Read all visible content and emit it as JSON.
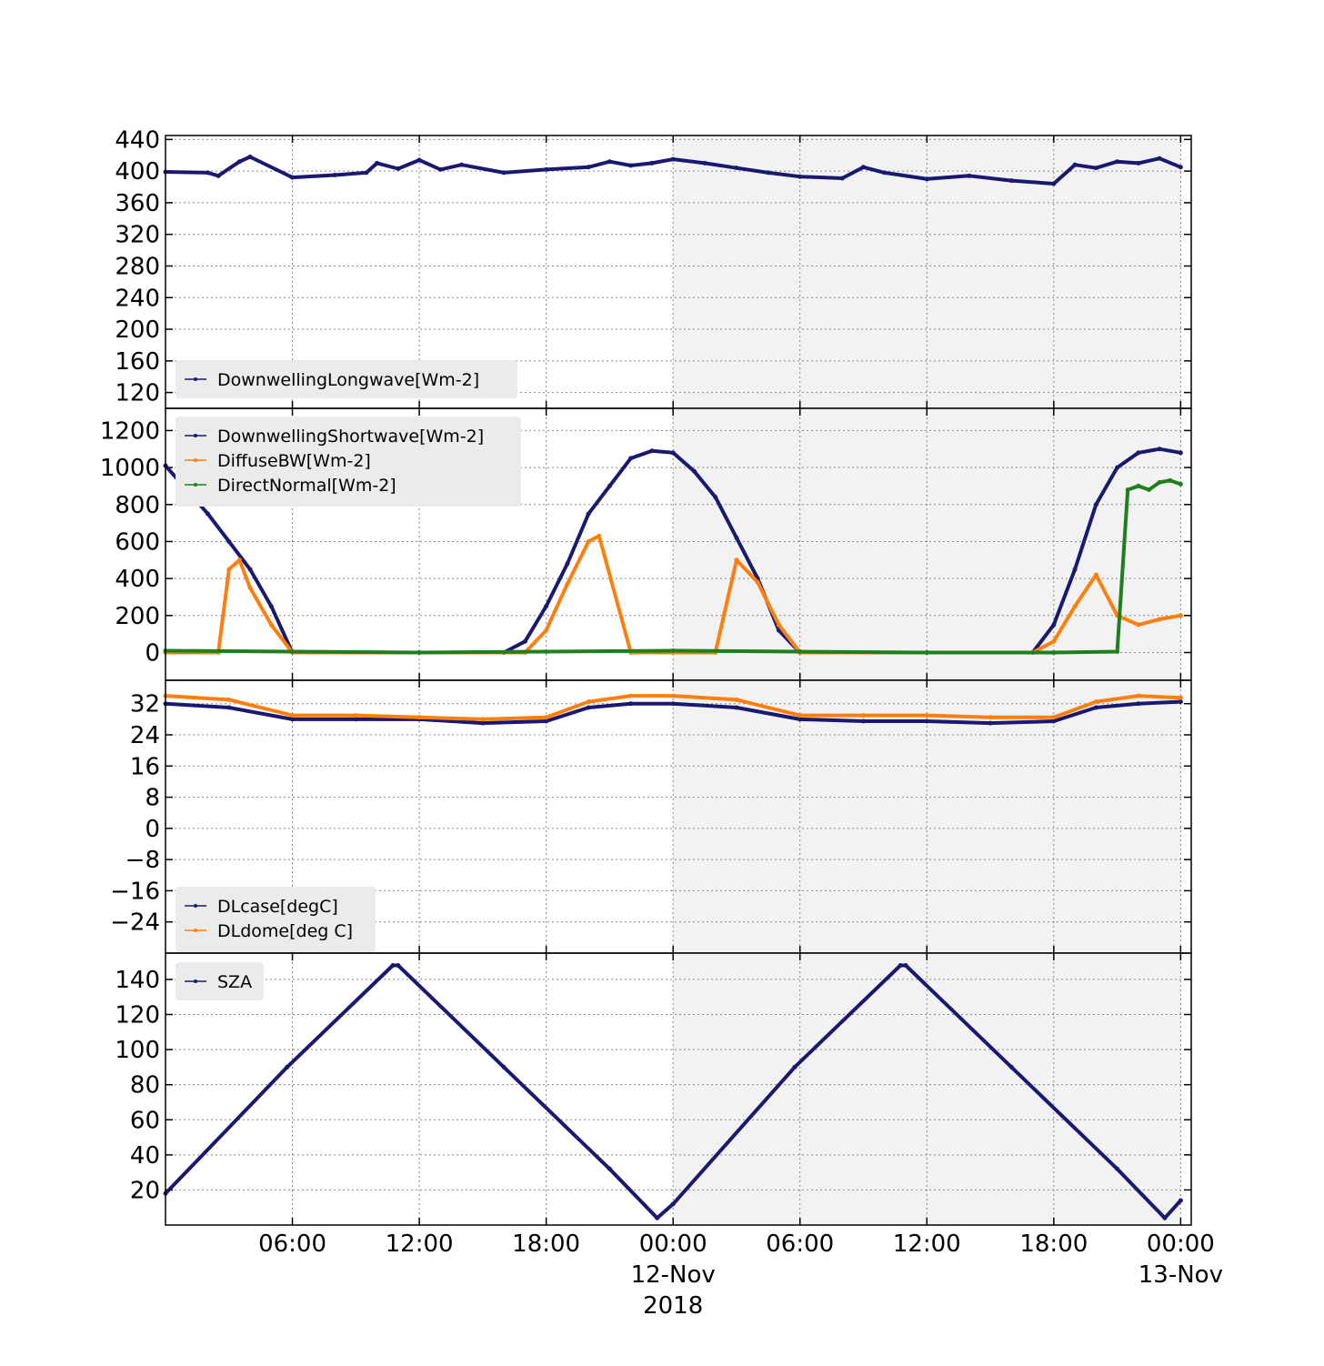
{
  "chart_data": [
    {
      "type": "line",
      "panel": "longwave",
      "title": "",
      "xlabel": "",
      "ylabel": "",
      "xlim": [
        "2018-11-11 00:00",
        "2018-11-13 00:30"
      ],
      "ylim": [
        100,
        445
      ],
      "yticks": [
        120,
        160,
        200,
        240,
        280,
        320,
        360,
        400,
        440
      ],
      "grid": true,
      "legend_position": "lower-left",
      "shaded_region": [
        "2018-11-12 00:00",
        "2018-11-13 00:00"
      ],
      "series": [
        {
          "name": "DownwellingLongwave[Wm-2]",
          "color": "#191970",
          "x": [
            "2018-11-11 00:00",
            "2018-11-11 02:00",
            "2018-11-11 02:30",
            "2018-11-11 03:30",
            "2018-11-11 04:00",
            "2018-11-11 06:00",
            "2018-11-11 08:00",
            "2018-11-11 09:30",
            "2018-11-11 10:00",
            "2018-11-11 11:00",
            "2018-11-11 12:00",
            "2018-11-11 13:00",
            "2018-11-11 14:00",
            "2018-11-11 16:00",
            "2018-11-11 18:00",
            "2018-11-11 20:00",
            "2018-11-11 21:00",
            "2018-11-11 22:00",
            "2018-11-11 23:00",
            "2018-11-12 00:00",
            "2018-11-12 01:30",
            "2018-11-12 03:00",
            "2018-11-12 04:30",
            "2018-11-12 06:00",
            "2018-11-12 08:00",
            "2018-11-12 09:00",
            "2018-11-12 10:00",
            "2018-11-12 12:00",
            "2018-11-12 14:00",
            "2018-11-12 16:00",
            "2018-11-12 18:00",
            "2018-11-12 19:00",
            "2018-11-12 20:00",
            "2018-11-12 21:00",
            "2018-11-12 22:00",
            "2018-11-12 23:00",
            "2018-11-13 00:00"
          ],
          "y": [
            399,
            398,
            394,
            412,
            418,
            392,
            395,
            398,
            410,
            403,
            414,
            402,
            408,
            398,
            402,
            405,
            412,
            407,
            410,
            415,
            410,
            404,
            398,
            393,
            391,
            405,
            398,
            390,
            394,
            388,
            384,
            408,
            404,
            412,
            410,
            416,
            405
          ]
        }
      ]
    },
    {
      "type": "line",
      "panel": "shortwave",
      "title": "",
      "xlabel": "",
      "ylabel": "",
      "xlim": [
        "2018-11-11 00:00",
        "2018-11-13 00:30"
      ],
      "ylim": [
        -150,
        1320
      ],
      "yticks": [
        0,
        200,
        400,
        600,
        800,
        1000,
        1200
      ],
      "grid": true,
      "legend_position": "upper-left",
      "shaded_region": [
        "2018-11-12 00:00",
        "2018-11-13 00:00"
      ],
      "series": [
        {
          "name": "DownwellingShortwave[Wm-2]",
          "color": "#191970",
          "x": [
            "2018-11-11 00:00",
            "2018-11-11 01:00",
            "2018-11-11 02:00",
            "2018-11-11 03:00",
            "2018-11-11 04:00",
            "2018-11-11 05:00",
            "2018-11-11 06:00",
            "2018-11-11 12:00",
            "2018-11-11 16:00",
            "2018-11-11 17:00",
            "2018-11-11 18:00",
            "2018-11-11 19:00",
            "2018-11-11 20:00",
            "2018-11-11 21:00",
            "2018-11-11 22:00",
            "2018-11-11 23:00",
            "2018-11-12 00:00",
            "2018-11-12 01:00",
            "2018-11-12 02:00",
            "2018-11-12 03:00",
            "2018-11-12 04:00",
            "2018-11-12 05:00",
            "2018-11-12 06:00",
            "2018-11-12 12:00",
            "2018-11-12 17:00",
            "2018-11-12 18:00",
            "2018-11-12 19:00",
            "2018-11-12 20:00",
            "2018-11-12 21:00",
            "2018-11-12 22:00",
            "2018-11-12 23:00",
            "2018-11-13 00:00"
          ],
          "y": [
            1010,
            880,
            750,
            600,
            450,
            250,
            0,
            0,
            0,
            60,
            250,
            480,
            750,
            900,
            1050,
            1090,
            1080,
            980,
            840,
            620,
            400,
            120,
            0,
            0,
            0,
            150,
            450,
            800,
            1000,
            1080,
            1100,
            1080
          ]
        },
        {
          "name": "DiffuseBW[Wm-2]",
          "color": "#ff7f0e",
          "x": [
            "2018-11-11 00:00",
            "2018-11-11 02:30",
            "2018-11-11 03:00",
            "2018-11-11 03:30",
            "2018-11-11 04:00",
            "2018-11-11 05:00",
            "2018-11-11 06:00",
            "2018-11-11 17:00",
            "2018-11-11 18:00",
            "2018-11-11 19:00",
            "2018-11-11 20:00",
            "2018-11-11 20:30",
            "2018-11-11 22:00",
            "2018-11-12 00:00",
            "2018-11-12 02:00",
            "2018-11-12 03:00",
            "2018-11-12 04:00",
            "2018-11-12 05:00",
            "2018-11-12 06:00",
            "2018-11-12 17:00",
            "2018-11-12 18:00",
            "2018-11-12 19:00",
            "2018-11-12 20:00",
            "2018-11-12 21:00",
            "2018-11-12 22:00",
            "2018-11-12 23:00",
            "2018-11-13 00:00"
          ],
          "y": [
            0,
            0,
            450,
            500,
            350,
            150,
            0,
            0,
            120,
            370,
            600,
            630,
            0,
            0,
            0,
            500,
            380,
            150,
            0,
            0,
            60,
            250,
            420,
            200,
            150,
            180,
            200
          ]
        },
        {
          "name": "DirectNormal[Wm-2]",
          "color": "#1f7f1f",
          "x": [
            "2018-11-11 00:00",
            "2018-11-11 06:00",
            "2018-11-11 12:00",
            "2018-11-11 18:00",
            "2018-11-12 00:00",
            "2018-11-12 06:00",
            "2018-11-12 12:00",
            "2018-11-12 18:00",
            "2018-11-12 21:00",
            "2018-11-12 21:30",
            "2018-11-12 22:00",
            "2018-11-12 22:30",
            "2018-11-12 23:00",
            "2018-11-12 23:30",
            "2018-11-13 00:00"
          ],
          "y": [
            10,
            5,
            0,
            5,
            10,
            5,
            0,
            0,
            5,
            880,
            900,
            880,
            920,
            930,
            910
          ]
        }
      ]
    },
    {
      "type": "line",
      "panel": "temperature",
      "title": "",
      "xlabel": "",
      "ylabel": "",
      "xlim": [
        "2018-11-11 00:00",
        "2018-11-13 00:30"
      ],
      "ylim": [
        -32,
        38
      ],
      "yticks": [
        -24,
        -16,
        -8,
        0,
        8,
        16,
        24,
        32
      ],
      "grid": true,
      "legend_position": "lower-left",
      "shaded_region": [
        "2018-11-12 00:00",
        "2018-11-13 00:00"
      ],
      "series": [
        {
          "name": "DLcase[degC]",
          "color": "#191970",
          "x": [
            "2018-11-11 00:00",
            "2018-11-11 03:00",
            "2018-11-11 06:00",
            "2018-11-11 09:00",
            "2018-11-11 12:00",
            "2018-11-11 15:00",
            "2018-11-11 18:00",
            "2018-11-11 20:00",
            "2018-11-11 22:00",
            "2018-11-12 00:00",
            "2018-11-12 03:00",
            "2018-11-12 06:00",
            "2018-11-12 09:00",
            "2018-11-12 12:00",
            "2018-11-12 15:00",
            "2018-11-12 18:00",
            "2018-11-12 20:00",
            "2018-11-12 22:00",
            "2018-11-13 00:00"
          ],
          "y": [
            32,
            31,
            28,
            28,
            28,
            27,
            27.5,
            31,
            32,
            32,
            31,
            28,
            27.5,
            27.5,
            27,
            27.5,
            31,
            32,
            32.5
          ]
        },
        {
          "name": "DLdome[deg C]",
          "color": "#ff7f0e",
          "x": [
            "2018-11-11 00:00",
            "2018-11-11 03:00",
            "2018-11-11 06:00",
            "2018-11-11 09:00",
            "2018-11-11 12:00",
            "2018-11-11 15:00",
            "2018-11-11 18:00",
            "2018-11-11 20:00",
            "2018-11-11 22:00",
            "2018-11-12 00:00",
            "2018-11-12 03:00",
            "2018-11-12 06:00",
            "2018-11-12 09:00",
            "2018-11-12 12:00",
            "2018-11-12 15:00",
            "2018-11-12 18:00",
            "2018-11-12 20:00",
            "2018-11-12 22:00",
            "2018-11-13 00:00"
          ],
          "y": [
            34,
            33,
            29,
            29,
            28.5,
            28,
            28.5,
            32.5,
            34,
            34,
            33,
            29,
            29,
            29,
            28.5,
            28.5,
            32.5,
            34,
            33.5
          ]
        }
      ]
    },
    {
      "type": "line",
      "panel": "sza",
      "title": "",
      "xlabel": "",
      "ylabel": "",
      "xlim": [
        "2018-11-11 00:00",
        "2018-11-13 00:30"
      ],
      "ylim": [
        0,
        155
      ],
      "yticks": [
        20,
        40,
        60,
        80,
        100,
        120,
        140
      ],
      "grid": true,
      "legend_position": "upper-left",
      "shaded_region": [
        "2018-11-12 00:00",
        "2018-11-13 00:00"
      ],
      "series": [
        {
          "name": "SZA",
          "color": "#191970",
          "x": [
            "2018-11-11 00:00",
            "2018-11-11 05:45",
            "2018-11-11 10:45",
            "2018-11-11 11:00",
            "2018-11-11 16:00",
            "2018-11-11 21:00",
            "2018-11-11 23:15",
            "2018-11-12 00:00",
            "2018-11-12 05:45",
            "2018-11-12 10:45",
            "2018-11-12 11:00",
            "2018-11-12 16:00",
            "2018-11-12 21:00",
            "2018-11-12 23:15",
            "2018-11-13 00:00"
          ],
          "y": [
            18,
            90,
            148,
            148,
            90,
            32,
            4,
            12,
            90,
            148,
            148,
            90,
            32,
            4,
            14
          ]
        }
      ]
    }
  ],
  "x_axis": {
    "tick_labels": [
      "06:00",
      "12:00",
      "18:00",
      "00:00",
      "06:00",
      "12:00",
      "18:00",
      "00:00"
    ],
    "date_labels": [
      "12-Nov",
      "2018",
      "13-Nov"
    ]
  },
  "colors": {
    "shade": "#f2f2f2",
    "legend_bg": "#ebebeb"
  }
}
